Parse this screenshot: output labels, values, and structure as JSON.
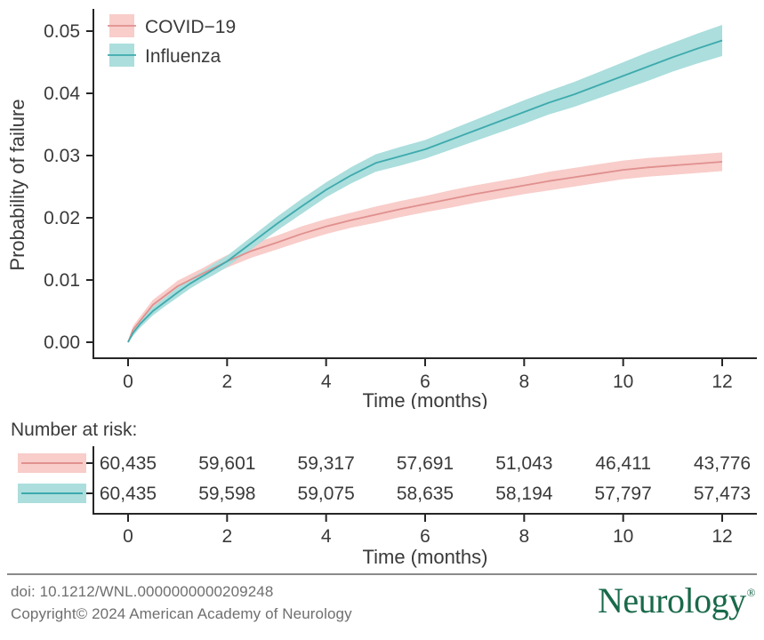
{
  "chart_data": {
    "type": "line",
    "title": "",
    "xlabel": "Time (months)",
    "ylabel": "Probability of failure",
    "xlim": [
      0,
      12
    ],
    "ylim": [
      0,
      0.05
    ],
    "xticks": [
      0,
      2,
      4,
      6,
      8,
      10,
      12
    ],
    "yticks": [
      0,
      0.01,
      0.02,
      0.03,
      0.04,
      0.05
    ],
    "ytick_labels": [
      "0.00",
      "0.01",
      "0.02",
      "0.03",
      "0.04",
      "0.05"
    ],
    "grid": false,
    "legend_position": "top-left-inside",
    "x": [
      0,
      0.1,
      0.25,
      0.5,
      0.75,
      1,
      1.25,
      1.5,
      1.75,
      2,
      2.5,
      3,
      3.5,
      4,
      4.5,
      5,
      5.5,
      6,
      6.5,
      7,
      7.5,
      8,
      8.5,
      9,
      9.5,
      10,
      10.5,
      11,
      11.5,
      12
    ],
    "series": [
      {
        "name": "COVID−19",
        "line_color": "#e0908e",
        "band_color": "#f8cdca",
        "values": [
          0,
          0.002,
          0.0035,
          0.006,
          0.0075,
          0.009,
          0.01,
          0.011,
          0.012,
          0.013,
          0.0147,
          0.016,
          0.0174,
          0.0186,
          0.0196,
          0.0205,
          0.0214,
          0.0222,
          0.023,
          0.0238,
          0.0245,
          0.0252,
          0.0259,
          0.0265,
          0.0271,
          0.0277,
          0.0281,
          0.0284,
          0.0287,
          0.029
        ],
        "ci_half": [
          0.0002,
          0.0006,
          0.0007,
          0.0008,
          0.0008,
          0.0009,
          0.0009,
          0.0009,
          0.001,
          0.001,
          0.0011,
          0.0011,
          0.0012,
          0.0012,
          0.0012,
          0.0013,
          0.0013,
          0.0013,
          0.0014,
          0.0014,
          0.0014,
          0.0014,
          0.0015,
          0.0015,
          0.0015,
          0.0015,
          0.0015,
          0.0015,
          0.0015,
          0.0015
        ]
      },
      {
        "name": "Influenza",
        "line_color": "#3eaaad",
        "band_color": "#abdedd",
        "values": [
          0,
          0.0015,
          0.003,
          0.005,
          0.0065,
          0.008,
          0.0094,
          0.0106,
          0.0118,
          0.013,
          0.016,
          0.019,
          0.0218,
          0.0245,
          0.0268,
          0.0288,
          0.0299,
          0.031,
          0.0325,
          0.034,
          0.0355,
          0.037,
          0.0385,
          0.0398,
          0.0413,
          0.0428,
          0.0443,
          0.0458,
          0.0472,
          0.0485
        ],
        "ci_half": [
          0.0002,
          0.0005,
          0.0006,
          0.0007,
          0.0007,
          0.0008,
          0.0008,
          0.0008,
          0.0009,
          0.0009,
          0.001,
          0.0011,
          0.0012,
          0.0012,
          0.0013,
          0.0014,
          0.0015,
          0.0015,
          0.0016,
          0.0017,
          0.0018,
          0.0019,
          0.0019,
          0.002,
          0.0021,
          0.0022,
          0.0023,
          0.0023,
          0.0024,
          0.0025
        ]
      }
    ]
  },
  "risk_table": {
    "label": "Number at risk:",
    "time_points": [
      0,
      2,
      4,
      6,
      8,
      10,
      12
    ],
    "xlabel": "Time (months)",
    "rows": [
      {
        "series": "COVID−19",
        "counts": [
          "60,435",
          "59,601",
          "59,317",
          "57,691",
          "51,043",
          "46,411",
          "43,776"
        ]
      },
      {
        "series": "Influenza",
        "counts": [
          "60,435",
          "59,598",
          "59,075",
          "58,635",
          "58,194",
          "57,797",
          "57,473"
        ]
      }
    ]
  },
  "footer": {
    "doi": "doi: 10.1212/WNL.0000000000209248",
    "copyright": "Copyright© 2024 American Academy of Neurology",
    "journal_logo": "Neurology",
    "registered_mark": "®",
    "logo_color": "#19694a"
  },
  "colors": {
    "axis": "#262626",
    "tick_label": "#3a3a3a",
    "footer_text": "#6f6f6f",
    "divider": "#8a8a8a",
    "background": "#ffffff"
  }
}
